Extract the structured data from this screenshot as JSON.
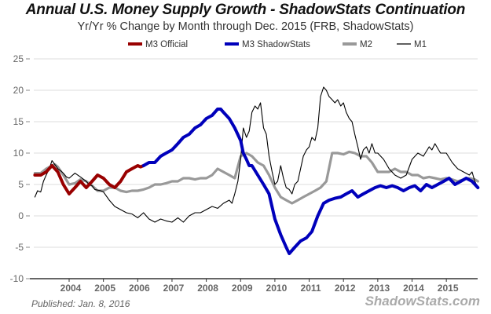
{
  "chart_data": {
    "type": "line",
    "title": "Annual U.S. Money Supply Growth - ShadowStats Continuation",
    "subtitle": "Yr/Yr % Change by Month through Dec. 2015  (FRB, ShadowStats)",
    "xlabel": "",
    "ylabel": "",
    "xlim": [
      2003.0,
      2015.92
    ],
    "ylim": [
      -10,
      25
    ],
    "grid": true,
    "legend_position": "top",
    "y_ticks": [
      25,
      20,
      15,
      10,
      5,
      0,
      -5,
      -10
    ],
    "x_ticks": [
      "2004",
      "2005",
      "2006",
      "2007",
      "2008",
      "2009",
      "2010",
      "2011",
      "2012",
      "2013",
      "2014",
      "2015"
    ],
    "x_tick_values": [
      2004,
      2005,
      2006,
      2007,
      2008,
      2009,
      2010,
      2011,
      2012,
      2013,
      2014,
      2015
    ],
    "series": [
      {
        "name": "M1",
        "color": "#000000",
        "x": [
          2003.0,
          2003.08,
          2003.17,
          2003.25,
          2003.33,
          2003.42,
          2003.5,
          2003.58,
          2003.67,
          2003.75,
          2003.83,
          2003.92,
          2004.0,
          2004.17,
          2004.33,
          2004.5,
          2004.58,
          2004.67,
          2004.75,
          2004.92,
          2005.0,
          2005.17,
          2005.33,
          2005.5,
          2005.67,
          2005.83,
          2006.0,
          2006.17,
          2006.33,
          2006.5,
          2006.67,
          2006.83,
          2007.0,
          2007.17,
          2007.33,
          2007.5,
          2007.67,
          2007.83,
          2008.0,
          2008.17,
          2008.33,
          2008.5,
          2008.67,
          2008.75,
          2008.83,
          2008.92,
          2009.0,
          2009.08,
          2009.17,
          2009.25,
          2009.33,
          2009.42,
          2009.5,
          2009.58,
          2009.67,
          2009.75,
          2009.83,
          2009.92,
          2010.0,
          2010.08,
          2010.17,
          2010.25,
          2010.33,
          2010.42,
          2010.5,
          2010.58,
          2010.67,
          2010.75,
          2010.83,
          2010.92,
          2011.0,
          2011.08,
          2011.17,
          2011.25,
          2011.33,
          2011.42,
          2011.5,
          2011.58,
          2011.67,
          2011.75,
          2011.83,
          2011.92,
          2012.0,
          2012.08,
          2012.17,
          2012.25,
          2012.33,
          2012.42,
          2012.5,
          2012.58,
          2012.67,
          2012.75,
          2012.83,
          2012.92,
          2013.0,
          2013.17,
          2013.33,
          2013.5,
          2013.67,
          2013.83,
          2014.0,
          2014.17,
          2014.33,
          2014.5,
          2014.58,
          2014.67,
          2014.83,
          2015.0,
          2015.17,
          2015.33,
          2015.5,
          2015.67,
          2015.75,
          2015.83,
          2015.92
        ],
        "values": [
          3.0,
          4.0,
          3.8,
          5.5,
          6.5,
          7.5,
          8.8,
          8.2,
          7.5,
          7.2,
          6.8,
          6.2,
          6.0,
          6.8,
          6.2,
          5.5,
          5.0,
          4.8,
          4.2,
          4.0,
          3.8,
          2.5,
          1.5,
          1.0,
          0.5,
          0.3,
          -0.3,
          0.5,
          -0.5,
          -1.0,
          -0.5,
          -0.8,
          -1.0,
          -0.3,
          -1.0,
          0.0,
          0.5,
          0.5,
          1.0,
          1.5,
          1.2,
          2.0,
          2.5,
          2.0,
          3.5,
          5.5,
          9.0,
          14.0,
          12.5,
          13.5,
          16.5,
          17.5,
          17.0,
          18.0,
          14.0,
          13.0,
          9.5,
          7.0,
          5.0,
          5.5,
          8.0,
          6.0,
          4.5,
          4.2,
          3.5,
          5.0,
          5.5,
          7.5,
          9.5,
          10.5,
          11.0,
          12.5,
          12.0,
          14.0,
          19.0,
          20.5,
          20.0,
          19.0,
          18.5,
          18.0,
          18.5,
          17.5,
          18.0,
          16.5,
          15.5,
          15.0,
          13.0,
          11.0,
          9.0,
          10.5,
          11.0,
          10.0,
          11.5,
          10.0,
          10.0,
          9.0,
          7.5,
          6.5,
          6.0,
          6.5,
          9.0,
          10.0,
          9.5,
          11.0,
          10.5,
          11.5,
          10.0,
          10.0,
          8.5,
          7.5,
          7.0,
          6.5,
          7.0,
          5.5,
          4.5
        ]
      },
      {
        "name": "M2",
        "color": "#999999",
        "x": [
          2003.0,
          2003.17,
          2003.33,
          2003.5,
          2003.58,
          2003.67,
          2003.83,
          2004.0,
          2004.17,
          2004.33,
          2004.5,
          2004.67,
          2004.83,
          2005.0,
          2005.17,
          2005.33,
          2005.5,
          2005.67,
          2005.83,
          2006.0,
          2006.17,
          2006.33,
          2006.5,
          2006.67,
          2006.83,
          2007.0,
          2007.17,
          2007.33,
          2007.5,
          2007.67,
          2007.83,
          2008.0,
          2008.17,
          2008.33,
          2008.5,
          2008.67,
          2008.83,
          2009.0,
          2009.17,
          2009.33,
          2009.5,
          2009.67,
          2009.83,
          2010.0,
          2010.17,
          2010.33,
          2010.5,
          2010.67,
          2010.83,
          2011.0,
          2011.17,
          2011.33,
          2011.5,
          2011.67,
          2011.83,
          2012.0,
          2012.17,
          2012.33,
          2012.5,
          2012.67,
          2012.83,
          2013.0,
          2013.17,
          2013.33,
          2013.5,
          2013.67,
          2013.83,
          2014.0,
          2014.17,
          2014.33,
          2014.5,
          2014.67,
          2014.83,
          2015.0,
          2015.17,
          2015.33,
          2015.5,
          2015.67,
          2015.83,
          2015.92
        ],
        "values": [
          6.8,
          6.8,
          7.5,
          8.0,
          8.2,
          7.8,
          6.5,
          5.0,
          5.2,
          5.8,
          5.5,
          4.8,
          4.0,
          4.0,
          4.5,
          4.5,
          4.0,
          3.8,
          4.0,
          4.0,
          4.2,
          4.5,
          5.0,
          5.0,
          5.2,
          5.5,
          5.5,
          6.0,
          6.0,
          5.8,
          6.0,
          6.0,
          6.5,
          7.5,
          7.0,
          6.5,
          6.0,
          9.5,
          10.0,
          9.5,
          8.5,
          8.0,
          6.5,
          4.5,
          3.0,
          2.5,
          2.0,
          2.5,
          3.0,
          3.5,
          4.0,
          4.5,
          5.5,
          10.0,
          10.0,
          9.8,
          10.2,
          10.0,
          9.5,
          9.5,
          8.5,
          7.0,
          7.0,
          7.0,
          7.5,
          7.0,
          7.0,
          6.5,
          6.5,
          6.0,
          6.2,
          6.0,
          5.8,
          6.0,
          5.8,
          5.5,
          5.8,
          6.0,
          5.8,
          5.5
        ]
      },
      {
        "name": "M3 Official",
        "color": "#990000",
        "x": [
          2003.0,
          2003.17,
          2003.33,
          2003.5,
          2003.67,
          2003.83,
          2004.0,
          2004.17,
          2004.33,
          2004.5,
          2004.67,
          2004.83,
          2005.0,
          2005.17,
          2005.33,
          2005.5,
          2005.67,
          2005.83,
          2006.0,
          2006.08,
          2006.17
        ],
        "values": [
          6.5,
          6.5,
          7.0,
          8.0,
          7.0,
          5.0,
          3.5,
          4.5,
          5.5,
          4.5,
          5.5,
          6.5,
          6.0,
          5.0,
          4.5,
          5.5,
          7.0,
          7.5,
          8.0,
          7.8,
          8.0
        ]
      },
      {
        "name": "M3 ShadowStats",
        "color": "#0000bb",
        "x": [
          2006.17,
          2006.33,
          2006.5,
          2006.67,
          2006.83,
          2007.0,
          2007.17,
          2007.33,
          2007.5,
          2007.67,
          2007.83,
          2008.0,
          2008.17,
          2008.33,
          2008.42,
          2008.5,
          2008.67,
          2008.83,
          2009.0,
          2009.08,
          2009.17,
          2009.25,
          2009.33,
          2009.5,
          2009.67,
          2009.83,
          2010.0,
          2010.17,
          2010.33,
          2010.42,
          2010.58,
          2010.75,
          2010.92,
          2011.08,
          2011.25,
          2011.42,
          2011.58,
          2011.75,
          2011.92,
          2012.08,
          2012.25,
          2012.42,
          2012.58,
          2012.75,
          2012.92,
          2013.08,
          2013.25,
          2013.42,
          2013.58,
          2013.75,
          2013.92,
          2014.08,
          2014.25,
          2014.42,
          2014.58,
          2014.75,
          2014.92,
          2015.08,
          2015.25,
          2015.42,
          2015.58,
          2015.75,
          2015.92
        ],
        "values": [
          8.0,
          8.5,
          8.5,
          9.5,
          10.0,
          10.5,
          11.5,
          12.5,
          13.0,
          14.0,
          14.5,
          15.5,
          16.0,
          17.0,
          17.0,
          16.5,
          15.5,
          14.0,
          12.0,
          10.0,
          9.0,
          8.0,
          8.0,
          6.5,
          5.0,
          3.5,
          -0.5,
          -3.0,
          -5.0,
          -6.0,
          -5.0,
          -4.0,
          -3.5,
          -2.5,
          0.0,
          2.0,
          2.5,
          2.8,
          3.0,
          3.5,
          4.0,
          3.0,
          3.5,
          4.0,
          4.5,
          4.8,
          4.5,
          4.8,
          4.5,
          4.0,
          4.5,
          4.8,
          4.0,
          5.0,
          4.5,
          5.0,
          5.5,
          6.0,
          5.0,
          5.5,
          6.0,
          5.5,
          4.5
        ]
      }
    ]
  },
  "legend": [
    {
      "label": "M3 Official",
      "color": "#990000"
    },
    {
      "label": "M3 ShadowStats",
      "color": "#0000bb"
    },
    {
      "label": "M2",
      "color": "#999999"
    },
    {
      "label": "M1",
      "color": "#000000"
    }
  ],
  "footer": {
    "published": "Published: Jan. 8, 2016",
    "watermark": "ShadowStats.com"
  }
}
